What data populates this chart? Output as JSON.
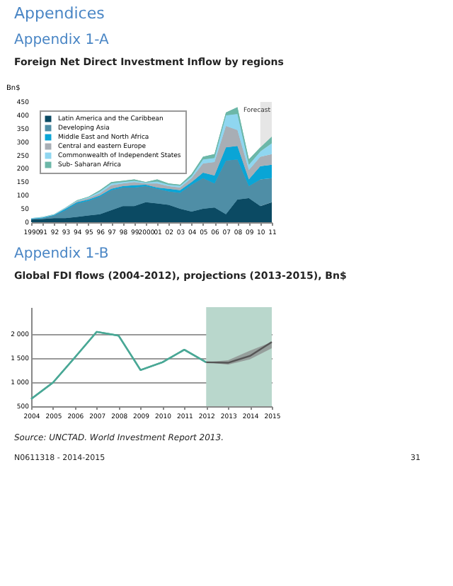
{
  "chart_data": [
    {
      "type": "area",
      "title": "Appendix 1-A",
      "subtitle": "Foreign Net Direct Investment Inflow by regions",
      "ylabel": "Bn$",
      "stacked": true,
      "legend": "top left",
      "grid": false,
      "annotations": [
        "Appendices"
      ],
      "categories": [
        "1990",
        "91",
        "92",
        "93",
        "94",
        "95",
        "96",
        "97",
        "98",
        "99",
        "2000",
        "01",
        "02",
        "03",
        "04",
        "05",
        "06",
        "07",
        "08",
        "09",
        "10",
        "11"
      ],
      "ylim": [
        0,
        450
      ],
      "yticks": [
        0,
        50,
        100,
        150,
        200,
        250,
        300,
        350,
        400,
        450
      ],
      "bands": [
        {
          "axis": "x",
          "from": "10",
          "to": "11",
          "label": "Forecast",
          "color": "#e6e6e6"
        }
      ],
      "series": [
        {
          "name": "Latin America and the Caribbean",
          "color": "#0b4a63",
          "values": [
            10,
            12,
            15,
            15,
            20,
            25,
            30,
            45,
            60,
            60,
            75,
            70,
            65,
            50,
            40,
            50,
            55,
            30,
            85,
            90,
            60,
            75
          ]
        },
        {
          "name": "Developing Asia",
          "color": "#4f8ea6",
          "values": [
            2,
            3,
            10,
            30,
            50,
            55,
            65,
            75,
            70,
            70,
            60,
            55,
            50,
            60,
            100,
            115,
            90,
            200,
            150,
            45,
            100,
            90
          ]
        },
        {
          "name": "Middle East and North Africa",
          "color": "#0aa5d6",
          "values": [
            1,
            2,
            2,
            5,
            5,
            5,
            5,
            5,
            5,
            8,
            5,
            5,
            10,
            10,
            10,
            20,
            30,
            50,
            50,
            25,
            50,
            50
          ]
        },
        {
          "name": "Central and eastern Europe",
          "color": "#a8aeb5",
          "values": [
            1,
            1,
            1,
            2,
            3,
            5,
            8,
            13,
            10,
            12,
            5,
            15,
            10,
            10,
            15,
            35,
            50,
            80,
            60,
            35,
            35,
            40
          ]
        },
        {
          "name": "Commonwealth of Independent States",
          "color": "#8fd6f0",
          "values": [
            1,
            1,
            1,
            2,
            2,
            3,
            7,
            7,
            5,
            5,
            3,
            7,
            5,
            6,
            7,
            15,
            15,
            40,
            60,
            20,
            20,
            40
          ]
        },
        {
          "name": "Sub- Saharan Africa",
          "color": "#6cb7a8",
          "values": [
            0,
            1,
            1,
            1,
            2,
            2,
            5,
            5,
            5,
            5,
            2,
            8,
            5,
            4,
            8,
            10,
            15,
            10,
            25,
            20,
            15,
            25
          ]
        }
      ]
    },
    {
      "type": "line",
      "title": "Appendix 1-B",
      "subtitle": "Global FDI flows (2004-2012), projections (2013-2015), Bn$",
      "grid": "y",
      "marker": "none",
      "line_style": "solid",
      "annotations": [
        "Source: UNCTAD. World Investment Report 2013.",
        "N0611318 - 2014-2015",
        "31"
      ],
      "categories": [
        "2004",
        "2005",
        "2006",
        "2007",
        "2008",
        "2009",
        "2010",
        "2011",
        "2012",
        "2013",
        "2014",
        "2015"
      ],
      "ylim": [
        500,
        2550
      ],
      "yticks": [
        500,
        {
          "value": 1000,
          "label": "1 000"
        },
        {
          "value": 1500,
          "label": "1 500"
        },
        {
          "value": 2000,
          "label": "2 000"
        }
      ],
      "bands": [
        {
          "axis": "x",
          "from": "2012",
          "to": "2015",
          "color": "#b9d7cc"
        }
      ],
      "series": [
        {
          "color": "#4aa896",
          "values": [
            650,
            990,
            1510,
            2040,
            1960,
            1250,
            1410,
            1670,
            1410,
            null,
            null,
            null
          ]
        },
        {
          "color": "#555555",
          "values": [
            null,
            null,
            null,
            null,
            null,
            null,
            null,
            null,
            1410,
            1400,
            1540,
            1830
          ],
          "lower": [
            null,
            null,
            null,
            null,
            null,
            null,
            null,
            null,
            1410,
            1360,
            1470,
            1700
          ],
          "upper": [
            null,
            null,
            null,
            null,
            null,
            null,
            null,
            null,
            1410,
            1450,
            1650,
            1830
          ]
        }
      ]
    }
  ]
}
